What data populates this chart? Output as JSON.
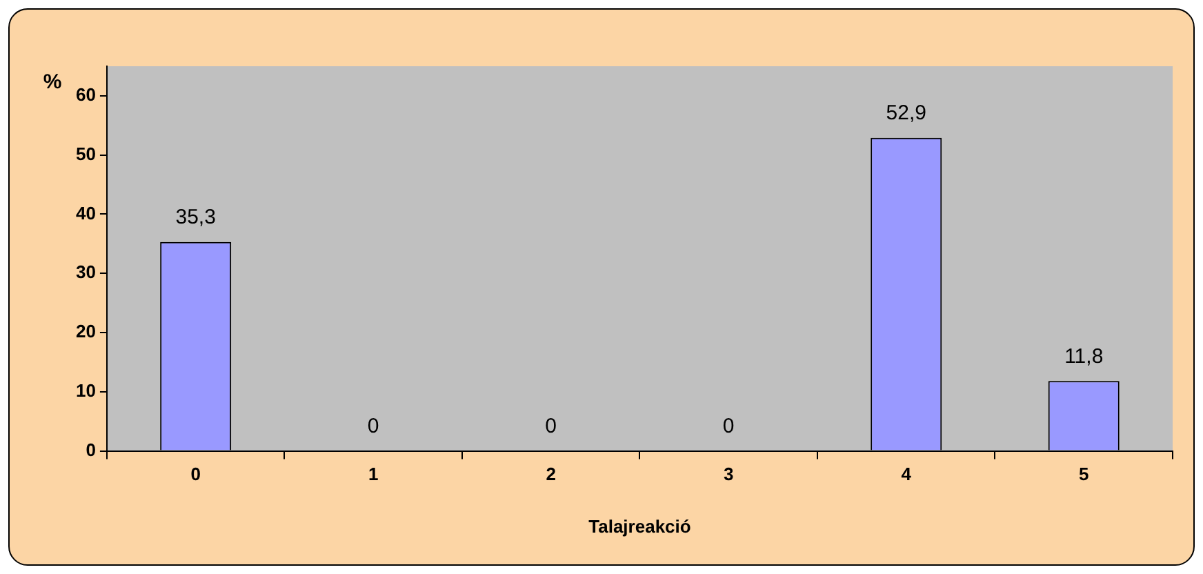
{
  "chart_data": {
    "type": "bar",
    "xlabel": "Talajreakció",
    "ylabel": "%",
    "categories": [
      "0",
      "1",
      "2",
      "3",
      "4",
      "5"
    ],
    "values": [
      35.3,
      0,
      0,
      0,
      52.9,
      11.8
    ],
    "value_labels": [
      "35,3",
      "0",
      "0",
      "0",
      "52,9",
      "11,8"
    ],
    "color": "#9999ff",
    "ylim": [
      0,
      65
    ],
    "yticks": [
      0,
      10,
      20,
      30,
      40,
      50,
      60
    ],
    "grid": false,
    "legend": false
  }
}
